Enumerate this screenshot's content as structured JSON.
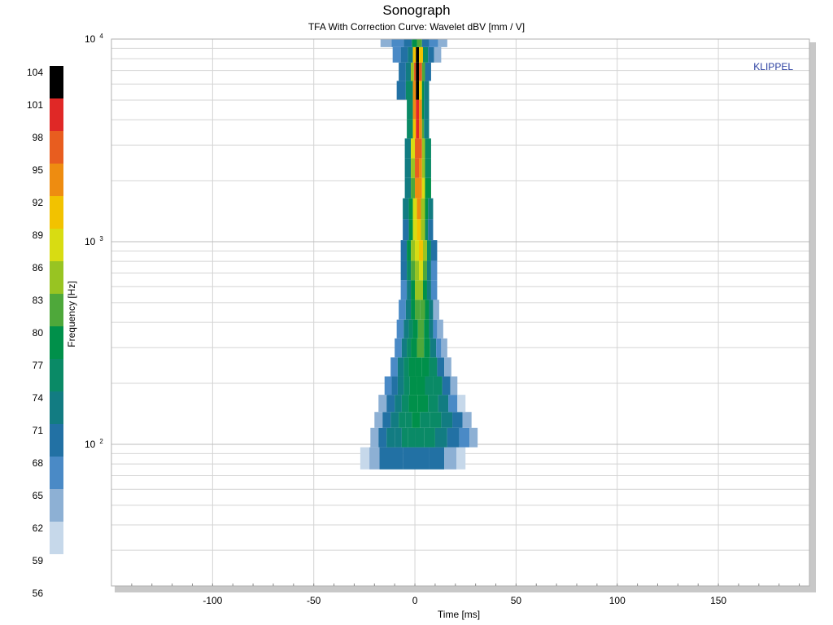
{
  "chart_data": {
    "type": "heatmap",
    "title": "Sonograph",
    "subtitle": "TFA With Correction Curve: Wavelet dBV [mm / V]",
    "xlabel": "Time [ms]",
    "ylabel": "Frequency [Hz]",
    "brand_label": "KLIPPEL",
    "xlim": [
      -150,
      195
    ],
    "ylim": [
      20,
      10000
    ],
    "y_scale": "log",
    "x_ticks": [
      -100,
      -50,
      0,
      50,
      100,
      150
    ],
    "x_tick_labels": [
      "-100",
      "-50",
      "0",
      "50",
      "100",
      "150"
    ],
    "y_ticks": [
      {
        "value": 100,
        "base": "10",
        "exp": "2"
      },
      {
        "value": 1000,
        "base": "10",
        "exp": "3"
      },
      {
        "value": 10000,
        "base": "10",
        "exp": "4"
      }
    ],
    "grid": true,
    "colorbar": {
      "labels": [
        "104",
        "101",
        "98",
        "95",
        "92",
        "89",
        "86",
        "83",
        "80",
        "77",
        "74",
        "71",
        "68",
        "65",
        "62",
        "59",
        "56"
      ],
      "colors": [
        "#000000",
        "#e02826",
        "#e85d1f",
        "#ee8c10",
        "#f2c200",
        "#d8dc12",
        "#98c422",
        "#4ea83a",
        "#00904a",
        "#0a8a66",
        "#127c82",
        "#2271a4",
        "#4a8ac6",
        "#8db0d4",
        "#c6d8ea"
      ]
    },
    "levels": [
      56,
      59,
      62,
      65,
      68,
      71,
      74,
      77,
      80,
      83,
      86,
      89,
      92,
      95,
      98,
      101,
      104
    ],
    "rows": [
      {
        "f": 85,
        "dB": [
          [
            -25,
            59
          ],
          [
            -20,
            63
          ],
          [
            -15,
            69
          ],
          [
            3,
            70
          ],
          [
            11,
            68
          ],
          [
            18,
            62
          ],
          [
            23,
            59
          ]
        ]
      },
      {
        "f": 110,
        "dB": [
          [
            -20,
            63
          ],
          [
            -16,
            68
          ],
          [
            -12,
            71
          ],
          [
            -8,
            73
          ],
          [
            -5,
            74
          ],
          [
            -2,
            75
          ],
          [
            2,
            76
          ],
          [
            7,
            74
          ],
          [
            13,
            72
          ],
          [
            19,
            70
          ],
          [
            25,
            66
          ],
          [
            29,
            62
          ]
        ]
      },
      {
        "f": 132,
        "dB": [
          [
            -18,
            63
          ],
          [
            -14,
            69
          ],
          [
            -10,
            72
          ],
          [
            -6,
            74
          ],
          [
            -3,
            76
          ],
          [
            0,
            77
          ],
          [
            5,
            76
          ],
          [
            10,
            74
          ],
          [
            16,
            71
          ],
          [
            21,
            68
          ],
          [
            26,
            63
          ]
        ]
      },
      {
        "f": 158,
        "dB": [
          [
            -16,
            62
          ],
          [
            -12,
            68
          ],
          [
            -8,
            72
          ],
          [
            -5,
            75
          ],
          [
            -1,
            77
          ],
          [
            4,
            77
          ],
          [
            9,
            75
          ],
          [
            14,
            72
          ],
          [
            19,
            66
          ],
          [
            23,
            61
          ]
        ]
      },
      {
        "f": 195,
        "dB": [
          [
            -13,
            65
          ],
          [
            -10,
            70
          ],
          [
            -7,
            73
          ],
          [
            -4,
            76
          ],
          [
            -1,
            78
          ],
          [
            3,
            78
          ],
          [
            7,
            76
          ],
          [
            11,
            74
          ],
          [
            16,
            68
          ],
          [
            19,
            62
          ]
        ]
      },
      {
        "f": 240,
        "dB": [
          [
            -10,
            66
          ],
          [
            -7,
            71
          ],
          [
            -4,
            75
          ],
          [
            -2,
            78
          ],
          [
            2,
            79
          ],
          [
            5,
            77
          ],
          [
            9,
            74
          ],
          [
            13,
            69
          ],
          [
            16,
            64
          ]
        ]
      },
      {
        "f": 300,
        "dB": [
          [
            -8,
            66
          ],
          [
            -5,
            72
          ],
          [
            -3,
            76
          ],
          [
            -1,
            79
          ],
          [
            3,
            80
          ],
          [
            6,
            77
          ],
          [
            9,
            73
          ],
          [
            12,
            67
          ],
          [
            14,
            62
          ]
        ]
      },
      {
        "f": 370,
        "dB": [
          [
            -7,
            65
          ],
          [
            -4,
            71
          ],
          [
            -2,
            76
          ],
          [
            0,
            79
          ],
          [
            3,
            81
          ],
          [
            6,
            77
          ],
          [
            8,
            72
          ],
          [
            10,
            66
          ],
          [
            12,
            62
          ]
        ]
      },
      {
        "f": 460,
        "dB": [
          [
            -6,
            65
          ],
          [
            -3,
            71
          ],
          [
            -1,
            77
          ],
          [
            1,
            81
          ],
          [
            4,
            82
          ],
          [
            6,
            77
          ],
          [
            8,
            71
          ],
          [
            10,
            64
          ]
        ]
      },
      {
        "f": 580,
        "dB": [
          [
            -5,
            66
          ],
          [
            -3,
            72
          ],
          [
            -1,
            78
          ],
          [
            1,
            83
          ],
          [
            3,
            84
          ],
          [
            5,
            79
          ],
          [
            7,
            72
          ],
          [
            9,
            65
          ]
        ]
      },
      {
        "f": 720,
        "dB": [
          [
            -5,
            68
          ],
          [
            -3,
            75
          ],
          [
            -1,
            81
          ],
          [
            1,
            85
          ],
          [
            3,
            86
          ],
          [
            5,
            80
          ],
          [
            7,
            73
          ],
          [
            9,
            67
          ]
        ]
      },
      {
        "f": 900,
        "dB": [
          [
            -5,
            69
          ],
          [
            -3,
            77
          ],
          [
            -1,
            84
          ],
          [
            1,
            88
          ],
          [
            3,
            89
          ],
          [
            5,
            83
          ],
          [
            7,
            75
          ],
          [
            9,
            69
          ]
        ]
      },
      {
        "f": 1150,
        "dB": [
          [
            -4,
            70
          ],
          [
            -2,
            78
          ],
          [
            0,
            86
          ],
          [
            2,
            90
          ],
          [
            4,
            84
          ],
          [
            6,
            76
          ],
          [
            7,
            70
          ]
        ]
      },
      {
        "f": 1450,
        "dB": [
          [
            -4,
            71
          ],
          [
            -2,
            79
          ],
          [
            0,
            88
          ],
          [
            2,
            92
          ],
          [
            4,
            85
          ],
          [
            6,
            77
          ],
          [
            7,
            71
          ]
        ]
      },
      {
        "f": 1850,
        "dB": [
          [
            -3,
            72
          ],
          [
            -1,
            82
          ],
          [
            1,
            92
          ],
          [
            3,
            94
          ],
          [
            4,
            86
          ],
          [
            6,
            78
          ]
        ]
      },
      {
        "f": 2300,
        "dB": [
          [
            -3,
            73
          ],
          [
            -1,
            84
          ],
          [
            1,
            95
          ],
          [
            3,
            92
          ],
          [
            4,
            84
          ],
          [
            6,
            76
          ]
        ]
      },
      {
        "f": 2900,
        "dB": [
          [
            -3,
            72
          ],
          [
            -1,
            86
          ],
          [
            1,
            97
          ],
          [
            3,
            95
          ],
          [
            4,
            83
          ],
          [
            6,
            75
          ]
        ]
      },
      {
        "f": 3600,
        "dB": [
          [
            -2,
            74
          ],
          [
            0,
            90
          ],
          [
            1,
            99
          ],
          [
            3,
            93
          ],
          [
            4,
            80
          ],
          [
            5,
            73
          ]
        ]
      },
      {
        "f": 4500,
        "dB": [
          [
            -2,
            74
          ],
          [
            0,
            92
          ],
          [
            1,
            100
          ],
          [
            3,
            92
          ],
          [
            4,
            79
          ],
          [
            5,
            72
          ]
        ]
      },
      {
        "f": 5600,
        "dB": [
          [
            -7,
            70
          ],
          [
            -2,
            75
          ],
          [
            0,
            93
          ],
          [
            1,
            101
          ],
          [
            3,
            91
          ],
          [
            4,
            78
          ],
          [
            5,
            71
          ]
        ]
      },
      {
        "f": 6900,
        "dB": [
          [
            -6,
            68
          ],
          [
            -3,
            72
          ],
          [
            -1,
            84
          ],
          [
            0,
            96
          ],
          [
            1,
            104
          ],
          [
            3,
            96
          ],
          [
            4,
            82
          ],
          [
            6,
            70
          ]
        ]
      },
      {
        "f": 8500,
        "dB": [
          [
            -9,
            65
          ],
          [
            -5,
            68
          ],
          [
            -2,
            73
          ],
          [
            0,
            90
          ],
          [
            1,
            104
          ],
          [
            3,
            90
          ],
          [
            5,
            76
          ],
          [
            8,
            68
          ],
          [
            11,
            64
          ]
        ]
      },
      {
        "f": 9800,
        "dB": [
          [
            -15,
            62
          ],
          [
            -8,
            66
          ],
          [
            -3,
            70
          ],
          [
            0,
            78
          ],
          [
            2,
            80
          ],
          [
            5,
            70
          ],
          [
            9,
            65
          ],
          [
            14,
            62
          ]
        ]
      }
    ]
  }
}
